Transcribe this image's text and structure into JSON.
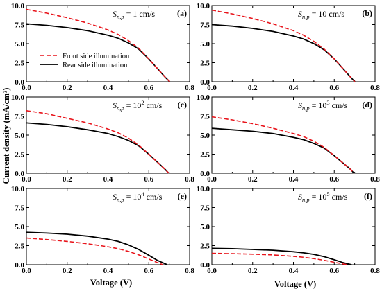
{
  "chart_data": {
    "type": "line",
    "title": "",
    "ylabel": "Current density (mA/cm²)",
    "xlabel": "Voltage (V)",
    "legend": {
      "placement": "middle-left of panel (a)",
      "entries": [
        {
          "label": "Front side illumination",
          "color": "#e8141b",
          "style": "dashed"
        },
        {
          "label": "Rear side illumination",
          "color": "#000000",
          "style": "solid"
        }
      ]
    },
    "xlim": [
      0.0,
      0.8
    ],
    "xticks": [
      "0.0",
      "0.2",
      "0.4",
      "0.6",
      "0.8"
    ],
    "ylim": [
      0.0,
      10.0
    ],
    "yticks": [
      "0.0",
      "2.5",
      "5.0",
      "7.5",
      "10.0"
    ],
    "panels": [
      {
        "letter": "(a)",
        "label": {
          "prefix": "S",
          "sub": "n,p",
          "eq": " = ",
          "base": "1",
          "exp": "",
          "unit": " cm/s"
        },
        "series": [
          {
            "name": "Front side illumination",
            "color": "#e8141b",
            "style": "dashed",
            "x": [
              0.0,
              0.1,
              0.2,
              0.3,
              0.4,
              0.45,
              0.5,
              0.55,
              0.6,
              0.64,
              0.68,
              0.703
            ],
            "y": [
              9.5,
              9.0,
              8.4,
              7.7,
              6.8,
              6.2,
              5.4,
              4.4,
              3.0,
              1.8,
              0.6,
              0.0
            ]
          },
          {
            "name": "Rear side illumination",
            "color": "#000000",
            "style": "solid",
            "x": [
              0.0,
              0.1,
              0.2,
              0.3,
              0.4,
              0.45,
              0.5,
              0.55,
              0.6,
              0.64,
              0.68,
              0.703
            ],
            "y": [
              7.6,
              7.4,
              7.1,
              6.7,
              6.1,
              5.7,
              5.1,
              4.3,
              3.0,
              1.8,
              0.6,
              0.0
            ]
          }
        ]
      },
      {
        "letter": "(b)",
        "label": {
          "prefix": "S",
          "sub": "n,p",
          "eq": " = ",
          "base": "10",
          "exp": "",
          "unit": " cm/s"
        },
        "series": [
          {
            "name": "Front side illumination",
            "color": "#e8141b",
            "style": "dashed",
            "x": [
              0.0,
              0.1,
              0.2,
              0.3,
              0.4,
              0.45,
              0.5,
              0.55,
              0.6,
              0.64,
              0.68,
              0.701
            ],
            "y": [
              9.4,
              8.9,
              8.3,
              7.6,
              6.7,
              6.1,
              5.3,
              4.3,
              3.0,
              1.8,
              0.6,
              0.0
            ]
          },
          {
            "name": "Rear side illumination",
            "color": "#000000",
            "style": "solid",
            "x": [
              0.0,
              0.1,
              0.2,
              0.3,
              0.4,
              0.45,
              0.5,
              0.55,
              0.6,
              0.64,
              0.68,
              0.701
            ],
            "y": [
              7.5,
              7.3,
              7.0,
              6.6,
              6.0,
              5.6,
              5.0,
              4.2,
              3.0,
              1.8,
              0.6,
              0.0
            ]
          }
        ]
      },
      {
        "letter": "(c)",
        "label": {
          "prefix": "S",
          "sub": "n,p",
          "eq": " = ",
          "base": "10",
          "exp": "2",
          "unit": " cm/s"
        },
        "series": [
          {
            "name": "Front side illumination",
            "color": "#e8141b",
            "style": "dashed",
            "x": [
              0.0,
              0.1,
              0.2,
              0.3,
              0.4,
              0.45,
              0.5,
              0.55,
              0.6,
              0.64,
              0.68,
              0.698
            ],
            "y": [
              8.2,
              7.8,
              7.2,
              6.6,
              5.8,
              5.3,
              4.6,
              3.7,
              2.5,
              1.5,
              0.5,
              0.0
            ]
          },
          {
            "name": "Rear side illumination",
            "color": "#000000",
            "style": "solid",
            "x": [
              0.0,
              0.1,
              0.2,
              0.3,
              0.4,
              0.45,
              0.5,
              0.55,
              0.6,
              0.64,
              0.68,
              0.698
            ],
            "y": [
              6.6,
              6.4,
              6.1,
              5.7,
              5.2,
              4.8,
              4.3,
              3.6,
              2.5,
              1.5,
              0.5,
              0.0
            ]
          }
        ]
      },
      {
        "letter": "(d)",
        "label": {
          "prefix": "S",
          "sub": "n,p",
          "eq": " = ",
          "base": "10",
          "exp": "3",
          "unit": " cm/s"
        },
        "series": [
          {
            "name": "Front side illumination",
            "color": "#e8141b",
            "style": "dashed",
            "x": [
              0.0,
              0.1,
              0.2,
              0.3,
              0.4,
              0.45,
              0.5,
              0.55,
              0.6,
              0.64,
              0.68,
              0.697
            ],
            "y": [
              7.4,
              7.0,
              6.5,
              5.9,
              5.2,
              4.8,
              4.2,
              3.4,
              2.3,
              1.4,
              0.5,
              0.0
            ]
          },
          {
            "name": "Rear side illumination",
            "color": "#000000",
            "style": "solid",
            "x": [
              0.0,
              0.1,
              0.2,
              0.3,
              0.4,
              0.45,
              0.5,
              0.55,
              0.6,
              0.64,
              0.68,
              0.697
            ],
            "y": [
              5.9,
              5.7,
              5.5,
              5.2,
              4.7,
              4.4,
              3.9,
              3.3,
              2.3,
              1.4,
              0.5,
              0.0
            ]
          }
        ]
      },
      {
        "letter": "(e)",
        "label": {
          "prefix": "S",
          "sub": "n,p",
          "eq": " = ",
          "base": "10",
          "exp": "4",
          "unit": " cm/s"
        },
        "series": [
          {
            "name": "Front side illumination",
            "color": "#e8141b",
            "style": "dashed",
            "x": [
              0.0,
              0.1,
              0.2,
              0.3,
              0.4,
              0.45,
              0.5,
              0.55,
              0.6,
              0.64,
              0.67
            ],
            "y": [
              3.5,
              3.3,
              3.05,
              2.75,
              2.35,
              2.1,
              1.75,
              1.3,
              0.75,
              0.3,
              0.0
            ]
          },
          {
            "name": "Rear side illumination",
            "color": "#000000",
            "style": "solid",
            "x": [
              0.0,
              0.1,
              0.2,
              0.3,
              0.4,
              0.45,
              0.5,
              0.55,
              0.6,
              0.64,
              0.69
            ],
            "y": [
              4.25,
              4.15,
              4.0,
              3.75,
              3.35,
              3.05,
              2.6,
              2.0,
              1.25,
              0.6,
              0.0
            ]
          }
        ]
      },
      {
        "letter": "(f)",
        "label": {
          "prefix": "S",
          "sub": "n,p",
          "eq": " = ",
          "base": "10",
          "exp": "5",
          "unit": " cm/s"
        },
        "series": [
          {
            "name": "Front side illumination",
            "color": "#e8141b",
            "style": "dashed",
            "x": [
              0.0,
              0.1,
              0.2,
              0.3,
              0.4,
              0.45,
              0.5,
              0.55,
              0.6,
              0.64,
              0.665
            ],
            "y": [
              1.5,
              1.45,
              1.38,
              1.28,
              1.1,
              0.97,
              0.8,
              0.58,
              0.32,
              0.12,
              0.0
            ]
          },
          {
            "name": "Rear side illumination",
            "color": "#000000",
            "style": "solid",
            "x": [
              0.0,
              0.1,
              0.2,
              0.3,
              0.4,
              0.45,
              0.5,
              0.55,
              0.6,
              0.64,
              0.685
            ],
            "y": [
              2.15,
              2.1,
              2.0,
              1.9,
              1.7,
              1.55,
              1.35,
              1.05,
              0.65,
              0.3,
              0.0
            ]
          }
        ]
      }
    ]
  }
}
